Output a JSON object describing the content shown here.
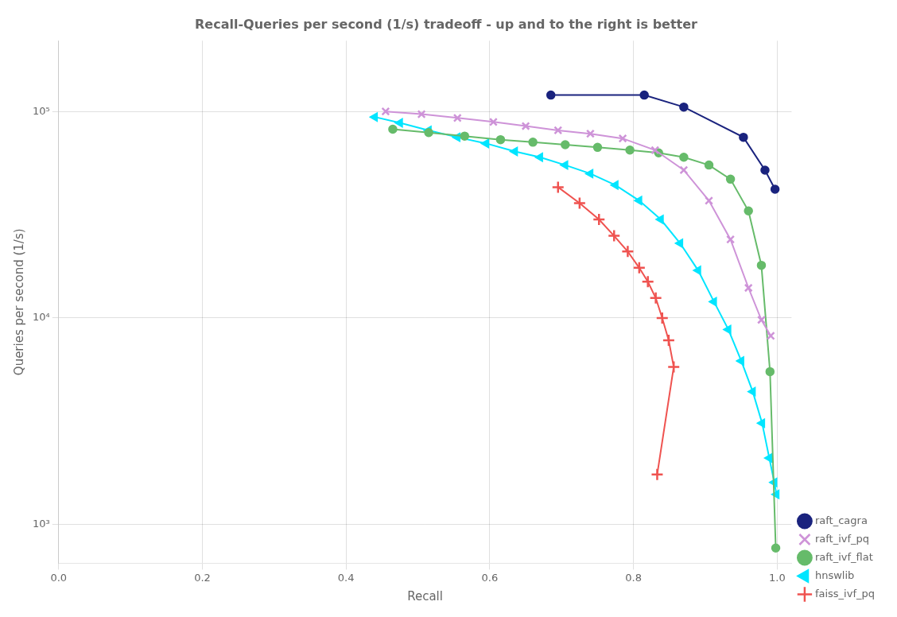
{
  "chart_data": {
    "type": "line",
    "title": "Recall-Queries per second (1/s) tradeoff - up and to the right is better",
    "xlabel": "Recall",
    "ylabel": "Queries per second (1/s)",
    "log": "y",
    "xlim": [
      0.0,
      1.02
    ],
    "ylim": [
      650,
      220000
    ],
    "xticks": [
      {
        "value": 0,
        "label": "0.0"
      },
      0.2,
      0.4,
      0.6,
      0.8,
      {
        "value": 1,
        "label": "1.0"
      }
    ],
    "yticks": [
      {
        "value": 1000,
        "label": "10³"
      },
      {
        "value": 10000,
        "label": "10⁴"
      },
      {
        "value": 100000,
        "label": "10⁵"
      }
    ],
    "grid": true,
    "legend": "lower right",
    "series": [
      {
        "name": "raft_cagra",
        "color": "#1a237e",
        "marker": "circle",
        "x": [
          0.685,
          0.815,
          0.87,
          0.953,
          0.983,
          0.997
        ],
        "values": [
          120000,
          120000,
          105000,
          75000,
          52000,
          42000
        ]
      },
      {
        "name": "raft_ivf_pq",
        "color": "#ce93d8",
        "marker": "x",
        "x": [
          0.455,
          0.505,
          0.555,
          0.605,
          0.65,
          0.695,
          0.74,
          0.785,
          0.83,
          0.87,
          0.905,
          0.935,
          0.96,
          0.978,
          0.991
        ],
        "values": [
          100000,
          97000,
          93000,
          89000,
          85000,
          81000,
          78000,
          74000,
          65000,
          52000,
          37000,
          24000,
          14000,
          9800,
          8200
        ]
      },
      {
        "name": "raft_ivf_flat",
        "color": "#66bb6a",
        "marker": "circle",
        "x": [
          0.465,
          0.515,
          0.565,
          0.615,
          0.66,
          0.705,
          0.75,
          0.795,
          0.835,
          0.87,
          0.905,
          0.935,
          0.96,
          0.978,
          0.99,
          0.998
        ],
        "values": [
          82000,
          79000,
          76000,
          73000,
          71000,
          69000,
          67000,
          65000,
          63000,
          60000,
          55000,
          47000,
          33000,
          18000,
          5500,
          770
        ]
      },
      {
        "name": "hnswlib",
        "color": "#00e5ff",
        "marker": "triangle_left",
        "x": [
          0.44,
          0.475,
          0.515,
          0.555,
          0.595,
          0.635,
          0.67,
          0.705,
          0.74,
          0.775,
          0.808,
          0.838,
          0.865,
          0.89,
          0.912,
          0.932,
          0.95,
          0.966,
          0.979,
          0.989,
          0.996,
          0.999
        ],
        "values": [
          94000,
          88000,
          81000,
          75000,
          70000,
          64000,
          60000,
          55000,
          50000,
          44000,
          37000,
          30000,
          23000,
          17000,
          12000,
          8800,
          6200,
          4400,
          3100,
          2100,
          1600,
          1400
        ]
      },
      {
        "name": "faiss_ivf_pq",
        "color": "#ef5350",
        "marker": "plus",
        "x": [
          0.695,
          0.725,
          0.752,
          0.773,
          0.792,
          0.808,
          0.82,
          0.831,
          0.84,
          0.849,
          0.856,
          0.833
        ],
        "values": [
          43000,
          36000,
          30000,
          25000,
          21000,
          17500,
          15000,
          12500,
          10000,
          7800,
          5800,
          1750
        ]
      }
    ]
  }
}
